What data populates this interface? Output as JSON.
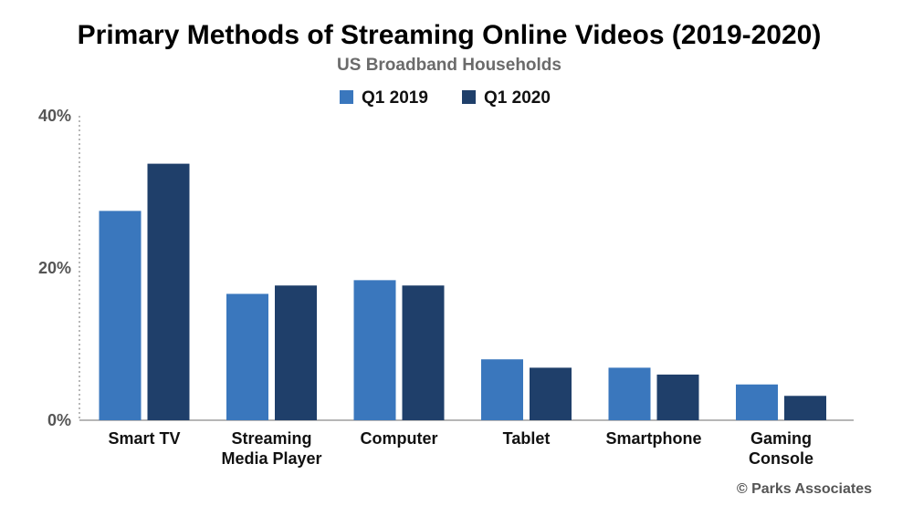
{
  "chart_data": {
    "type": "bar",
    "title": "Primary Methods of Streaming Online Videos (2019-2020)",
    "subtitle": "US Broadband Households",
    "categories": [
      [
        "Smart TV"
      ],
      [
        "Streaming",
        "Media Player"
      ],
      [
        "Computer"
      ],
      [
        "Tablet"
      ],
      [
        "Smartphone"
      ],
      [
        "Gaming",
        "Console"
      ]
    ],
    "series": [
      {
        "name": "Q1 2019",
        "color": "#3a77bd",
        "values": [
          27.5,
          16.6,
          18.4,
          8.0,
          6.9,
          4.7
        ]
      },
      {
        "name": "Q1 2020",
        "color": "#1f3f6a",
        "values": [
          33.7,
          17.7,
          17.7,
          6.9,
          6.0,
          3.2
        ]
      }
    ],
    "ylim": [
      0,
      40
    ],
    "yticks": [
      {
        "value": 0,
        "label": "0%"
      },
      {
        "value": 20,
        "label": "20%"
      },
      {
        "value": 40,
        "label": "40%"
      }
    ],
    "xlabel": "",
    "ylabel": "",
    "grid": false,
    "legend_position": "top-center"
  },
  "credit": "© Parks Associates"
}
